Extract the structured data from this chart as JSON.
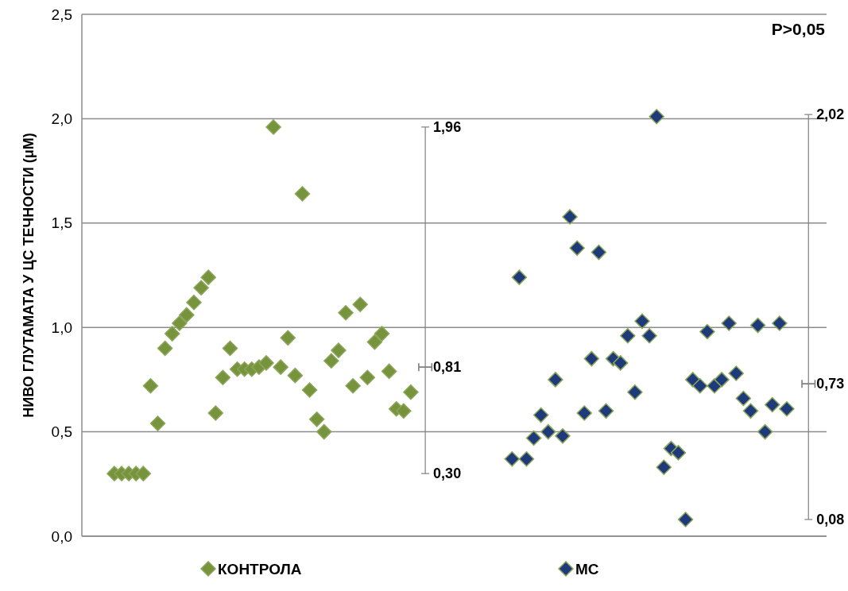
{
  "chart_data": {
    "type": "scatter",
    "ylabel": "НИВО ГЛУТАМАТА У ЦС ТЕЧНОСТИ (μM)",
    "categories": [
      null,
      null,
      null,
      null,
      null,
      null,
      null,
      null,
      null,
      null,
      null,
      null,
      null,
      null,
      null,
      null,
      null,
      null,
      null,
      null,
      null,
      null,
      null,
      null,
      null,
      null,
      null,
      null,
      null,
      null,
      null,
      null,
      null,
      null,
      null,
      null,
      null,
      null,
      null,
      null,
      null,
      null,
      null,
      null,
      null,
      null,
      null,
      null,
      null,
      null,
      null,
      null,
      null,
      null,
      null,
      null,
      null,
      null,
      null,
      null,
      null,
      null,
      null,
      null,
      null,
      null,
      null,
      null,
      null,
      null,
      null,
      null,
      null,
      null,
      null,
      null,
      null,
      null,
      null,
      null,
      null,
      null,
      null,
      null,
      null,
      null,
      null,
      null,
      null,
      null,
      null,
      null,
      null,
      null,
      null,
      null,
      null,
      null,
      null,
      null,
      null,
      null,
      null
    ],
    "ylim": [
      0,
      2.5
    ],
    "yticks": [
      {
        "value": 0,
        "label": "0,0"
      },
      {
        "value": 0.5,
        "label": "0,5"
      },
      {
        "value": 1,
        "label": "1,0"
      },
      {
        "value": 1.5,
        "label": "1,5"
      },
      {
        "value": 2,
        "label": "2,0"
      },
      {
        "value": 2.5,
        "label": "2,5"
      }
    ],
    "tick_labels": "y",
    "grid": "y",
    "legend": "bottom",
    "marker": "diamond",
    "annotations": [
      "P>0,05",
      "1,96",
      "0,81",
      "0,30",
      "2,02",
      "0,73",
      "0,08"
    ],
    "series": [
      {
        "name": "КОНТРОЛА",
        "color": "#77933c",
        "values": [
          null,
          null,
          null,
          null,
          0.3,
          0.3,
          0.3,
          0.3,
          0.3,
          0.72,
          0.54,
          0.9,
          0.97,
          1.02,
          1.06,
          1.12,
          1.19,
          1.24,
          0.59,
          0.76,
          0.9,
          0.8,
          0.8,
          0.8,
          0.81,
          0.83,
          1.96,
          0.81,
          0.95,
          0.77,
          1.64,
          0.7,
          0.56,
          0.5,
          0.84,
          0.89,
          1.07,
          0.72,
          1.11,
          0.76,
          0.93,
          0.97,
          0.79,
          0.61,
          0.6,
          0.69,
          null,
          null,
          null,
          null,
          null,
          null,
          null,
          null,
          null,
          null,
          null,
          null,
          null,
          null,
          null,
          null,
          null,
          null,
          null,
          null,
          null,
          null,
          null,
          null,
          null,
          null,
          null,
          null,
          null,
          null,
          null,
          null,
          null,
          null,
          null,
          null,
          null,
          null,
          null,
          null,
          null,
          null,
          null,
          null,
          null,
          null,
          null,
          null,
          null,
          null,
          null,
          null,
          null,
          null,
          null,
          null,
          null
        ]
      },
      {
        "name": "МС",
        "color": "#1f3a7a",
        "values": [
          null,
          null,
          null,
          null,
          null,
          null,
          null,
          null,
          null,
          null,
          null,
          null,
          null,
          null,
          null,
          null,
          null,
          null,
          null,
          null,
          null,
          null,
          null,
          null,
          null,
          null,
          null,
          null,
          null,
          null,
          null,
          null,
          null,
          null,
          null,
          null,
          null,
          null,
          null,
          null,
          null,
          null,
          null,
          null,
          null,
          null,
          null,
          null,
          null,
          null,
          null,
          null,
          null,
          null,
          null,
          null,
          null,
          null,
          null,
          0.37,
          1.24,
          0.37,
          0.47,
          0.58,
          0.5,
          0.75,
          0.48,
          1.53,
          1.38,
          0.59,
          0.85,
          1.36,
          0.6,
          0.85,
          0.83,
          0.96,
          0.69,
          1.03,
          0.96,
          2.01,
          0.33,
          0.42,
          0.4,
          0.08,
          0.75,
          0.72,
          0.98,
          0.72,
          0.75,
          1.02,
          0.78,
          0.66,
          0.6,
          1.01,
          0.5,
          0.63,
          1.02,
          0.61,
          null,
          null,
          null,
          null,
          null
        ]
      },
      {
        "type": "scatter",
        "marker": "cross",
        "color": "#808080",
        "values": [
          null,
          null,
          null,
          null,
          null,
          null,
          null,
          null,
          null,
          null,
          null,
          null,
          null,
          null,
          null,
          null,
          null,
          null,
          null,
          null,
          null,
          null,
          null,
          null,
          null,
          null,
          null,
          null,
          null,
          null,
          null,
          null,
          null,
          null,
          null,
          null,
          null,
          null,
          null,
          null,
          null,
          null,
          null,
          null,
          null,
          null,
          null,
          0.81,
          null,
          null,
          null,
          null,
          null,
          null,
          null,
          null,
          null,
          null,
          null,
          null,
          null,
          null,
          null,
          null,
          null,
          null,
          null,
          null,
          null,
          null,
          null,
          null,
          null,
          null,
          null,
          null,
          null,
          null,
          null,
          null,
          null,
          null,
          null,
          null,
          null,
          null,
          null,
          null,
          null,
          null,
          null,
          null,
          null,
          null,
          null,
          null,
          null,
          null,
          null,
          null,
          0.73,
          null,
          null
        ],
        "errors": [
          null,
          null,
          null,
          null,
          null,
          null,
          null,
          null,
          null,
          null,
          null,
          null,
          null,
          null,
          null,
          null,
          null,
          null,
          null,
          null,
          null,
          null,
          null,
          null,
          null,
          null,
          null,
          null,
          null,
          null,
          null,
          null,
          null,
          null,
          null,
          null,
          null,
          null,
          null,
          null,
          null,
          null,
          null,
          null,
          null,
          null,
          null,
          [
            0.3,
            1.96
          ],
          null,
          null,
          null,
          null,
          null,
          null,
          null,
          null,
          null,
          null,
          null,
          null,
          null,
          null,
          null,
          null,
          null,
          null,
          null,
          null,
          null,
          null,
          null,
          null,
          null,
          null,
          null,
          null,
          null,
          null,
          null,
          null,
          null,
          null,
          null,
          null,
          null,
          null,
          null,
          null,
          null,
          null,
          null,
          null,
          null,
          null,
          null,
          null,
          null,
          null,
          null,
          null,
          [
            0.08,
            2.02
          ],
          null,
          null
        ]
      }
    ]
  }
}
